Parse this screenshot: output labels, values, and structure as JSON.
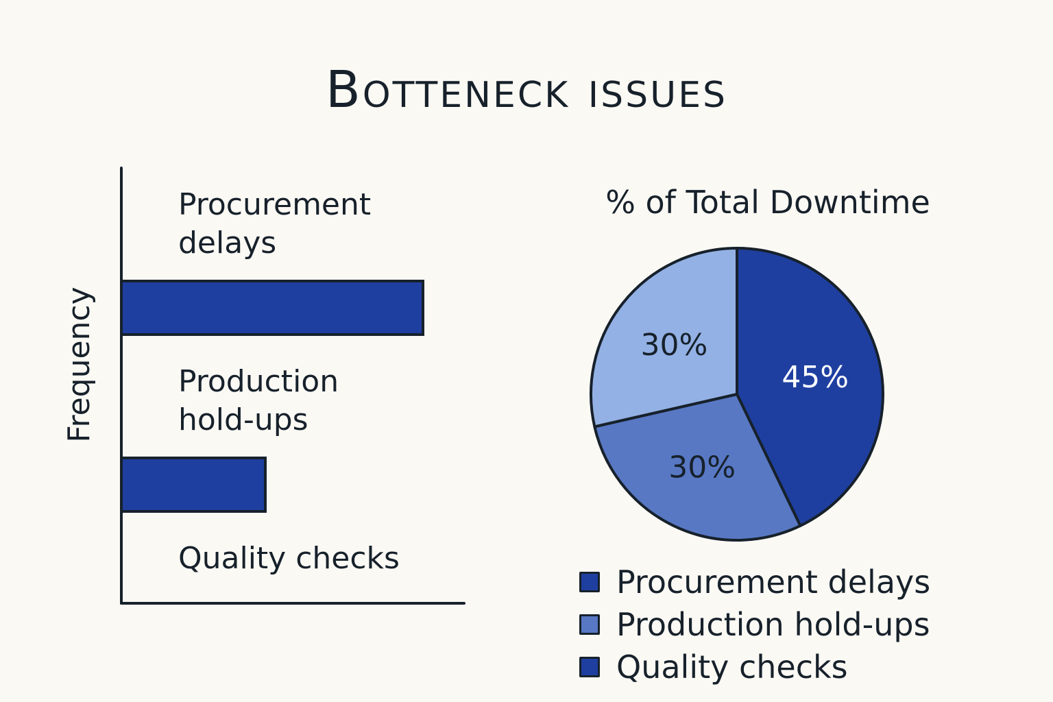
{
  "title": "Botteneck issues",
  "colors": {
    "ink": "#17212b",
    "dark_blue": "#1f3fa0",
    "mid_blue": "#5878c4",
    "light_blue": "#93b1e4"
  },
  "chart_data": [
    {
      "type": "bar",
      "orientation": "horizontal",
      "ylabel": "Frequency",
      "categories": [
        "Procurement delays",
        "Production hold-ups",
        "Quality checks"
      ],
      "category_lines": [
        [
          "Procurement",
          "delays"
        ],
        [
          "Production",
          "hold-ups"
        ],
        [
          "Quality checks"
        ]
      ],
      "values": [
        88,
        42,
        0
      ],
      "xlim": [
        0,
        100
      ],
      "grid": false
    },
    {
      "type": "pie",
      "title": "% of Total Downtime",
      "slices": [
        {
          "label": "Procurement delays",
          "value": 45,
          "display": "45%",
          "color": "#1f3fa0"
        },
        {
          "label": "Production hold-ups",
          "value": 30,
          "display": "30%",
          "color": "#5878c4"
        },
        {
          "label": "Quality checks",
          "value": 30,
          "display": "30%",
          "color": "#93b1e4"
        }
      ],
      "legend": {
        "placement": "bottom",
        "items": [
          {
            "label": "Procurement delays",
            "color": "#1f3fa0"
          },
          {
            "label": "Production hold-ups",
            "color": "#5878c4"
          },
          {
            "label": "Quality checks",
            "color": "#1f3fa0"
          }
        ]
      }
    }
  ]
}
